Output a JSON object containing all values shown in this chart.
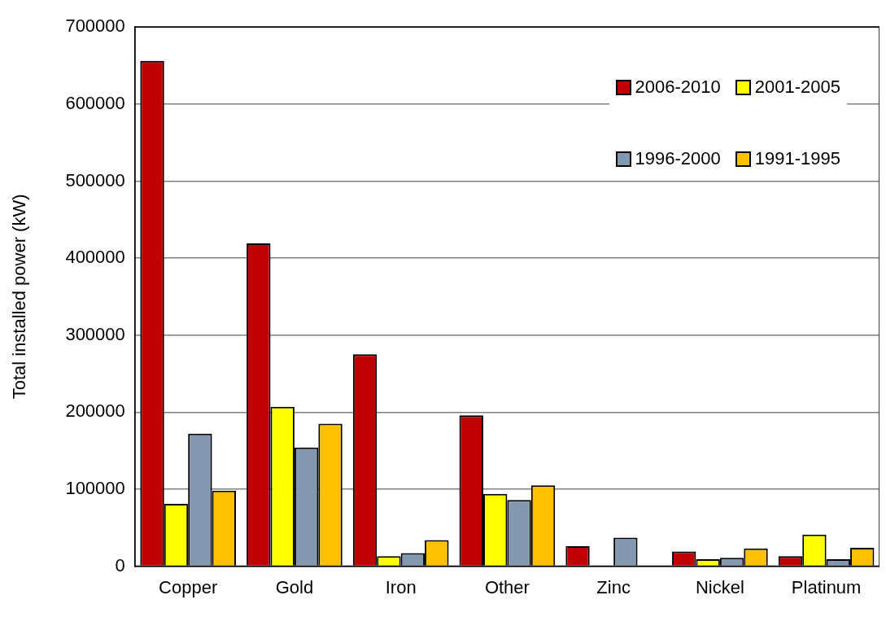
{
  "chart_data": {
    "type": "bar",
    "ylabel": "Total installed power (kW)",
    "categories": [
      "Copper",
      "Gold",
      "Iron",
      "Other",
      "Zinc",
      "Nickel",
      "Platinum"
    ],
    "series": [
      {
        "name": "2006-2010",
        "color": "#c00000",
        "values": [
          656000,
          419000,
          275000,
          196000,
          26000,
          19000,
          13000
        ]
      },
      {
        "name": "2001-2005",
        "color": "#ffff00",
        "values": [
          81000,
          207000,
          13000,
          94000,
          null,
          9000,
          41000
        ]
      },
      {
        "name": "1996-2000",
        "color": "#8497b0",
        "values": [
          172000,
          154000,
          17000,
          86000,
          37000,
          11000,
          9000
        ]
      },
      {
        "name": "1991-1995",
        "color": "#ffc000",
        "values": [
          98000,
          185000,
          34000,
          105000,
          null,
          23000,
          24000
        ]
      }
    ],
    "ylim": [
      0,
      700000
    ],
    "yticks": [
      0,
      100000,
      200000,
      300000,
      400000,
      500000,
      600000,
      700000
    ],
    "grid": "y",
    "legend": "top right"
  }
}
